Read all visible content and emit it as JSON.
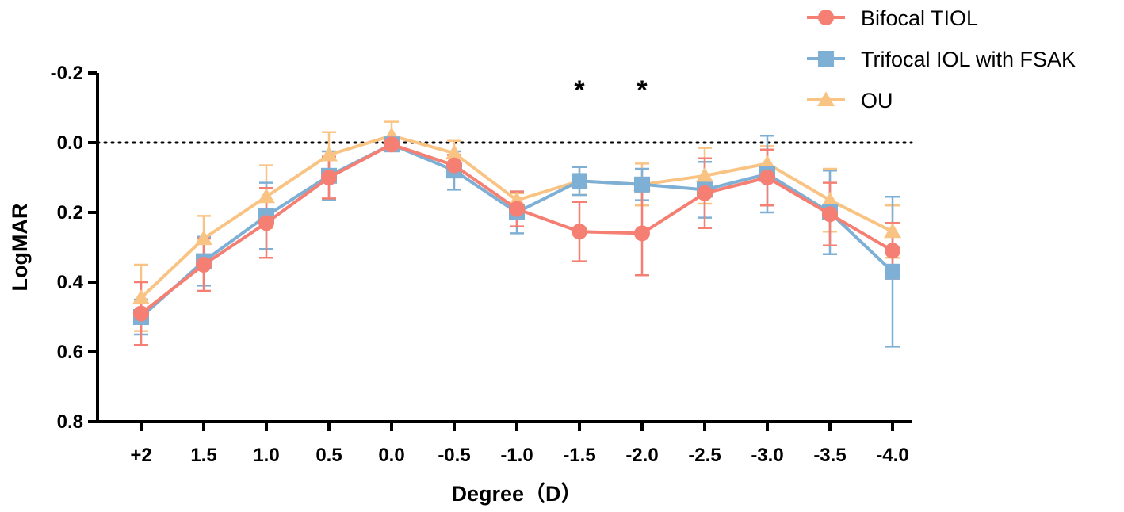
{
  "chart_data": {
    "type": "line",
    "title": "",
    "xlabel": "Degree（D）",
    "ylabel": "LogMAR",
    "categories": [
      "+2",
      "1.5",
      "1.0",
      "0.5",
      "0.0",
      "-0.5",
      "-1.0",
      "-1.5",
      "-2.0",
      "-2.5",
      "-3.0",
      "-3.5",
      "-4.0"
    ],
    "ylim": [
      -0.2,
      0.8
    ],
    "y_inverted": true,
    "yticks": [
      "-0.2",
      "0.0",
      "0.2",
      "0.4",
      "0.6",
      "0.8"
    ],
    "reference_line": 0.0,
    "legend_position": "top-right",
    "series": [
      {
        "name": "Bifocal TIOL",
        "color": "#F47F72",
        "marker": "circle",
        "values": [
          0.49,
          0.35,
          0.23,
          0.1,
          0.005,
          0.065,
          0.19,
          0.255,
          0.26,
          0.145,
          0.1,
          0.205,
          0.31
        ],
        "errors": [
          0.09,
          0.075,
          0.1,
          0.06,
          0.01,
          0.03,
          0.05,
          0.085,
          0.12,
          0.1,
          0.08,
          0.09,
          0.08
        ]
      },
      {
        "name": "Trifocal IOL with FSAK",
        "color": "#7EB0D5",
        "marker": "square",
        "values": [
          0.5,
          0.34,
          0.21,
          0.095,
          0.005,
          0.08,
          0.2,
          0.11,
          0.12,
          0.135,
          0.09,
          0.2,
          0.37
        ],
        "errors": [
          0.05,
          0.07,
          0.095,
          0.07,
          0.01,
          0.055,
          0.06,
          0.04,
          0.045,
          0.08,
          0.11,
          0.12,
          0.215
        ]
      },
      {
        "name": "OU",
        "color": "#F9C483",
        "marker": "triangle",
        "values": [
          0.445,
          0.275,
          0.155,
          0.035,
          -0.02,
          0.03,
          0.165,
          0.11,
          0.12,
          0.095,
          0.06,
          0.165,
          0.255
        ],
        "errors": [
          0.095,
          0.065,
          0.09,
          0.065,
          0.04,
          0.035,
          0.02,
          0.04,
          0.06,
          0.08,
          0.05,
          0.09,
          0.075
        ]
      }
    ],
    "annotations": [
      {
        "text": "*",
        "category": "-1.5",
        "y": -0.18
      },
      {
        "text": "*",
        "category": "-2.0",
        "y": -0.18
      }
    ]
  }
}
